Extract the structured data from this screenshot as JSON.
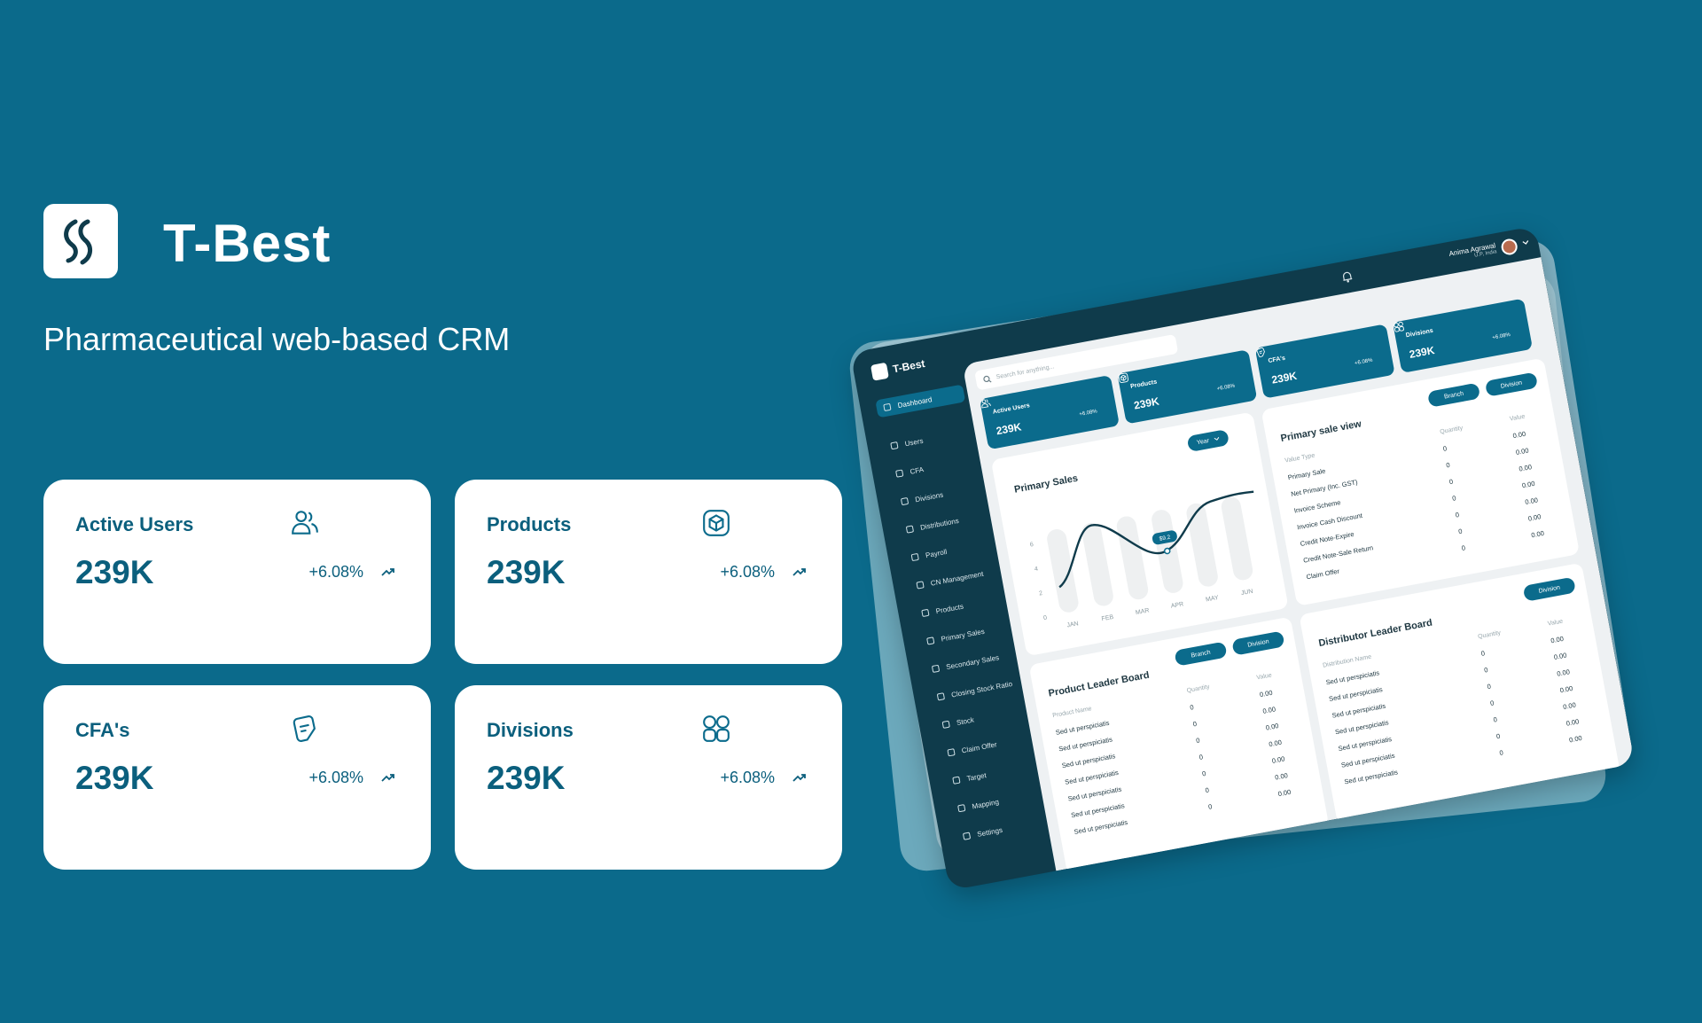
{
  "brand": {
    "name": "T-Best",
    "tagline": "Pharmaceutical web-based CRM"
  },
  "cards": [
    {
      "label": "Active Users",
      "value": "239K",
      "change": "+6.08%"
    },
    {
      "label": "Products",
      "value": "239K",
      "change": "+6.08%"
    },
    {
      "label": "CFA's",
      "value": "239K",
      "change": "+6.08%"
    },
    {
      "label": "Divisions",
      "value": "239K",
      "change": "+6.08%"
    }
  ],
  "dashboard": {
    "brand": "T-Best",
    "search_placeholder": "Search for anything...",
    "user": {
      "name": "Anima Agrawal",
      "location": "U.P, India"
    },
    "sidebar": [
      "Dashboard",
      "Users",
      "CFA",
      "Divisions",
      "Distributions",
      "Payroll",
      "CN Management",
      "Products",
      "Primary Sales",
      "Secondary Sales",
      "Closing Stock Ratio",
      "Stock",
      "Claim Offer",
      "Target",
      "Mapping",
      "Settings"
    ],
    "cards": [
      {
        "label": "Active Users",
        "value": "239K",
        "change": "+6.08%"
      },
      {
        "label": "Products",
        "value": "239K",
        "change": "+6.08%"
      },
      {
        "label": "CFA's",
        "value": "239K",
        "change": "+6.08%"
      },
      {
        "label": "Divisions",
        "value": "239K",
        "change": "+6.08%"
      }
    ],
    "primary_sales": {
      "title": "Primary Sales",
      "filter": "Year",
      "months": [
        "JAN",
        "FEB",
        "MAR",
        "APR",
        "MAY",
        "JUN"
      ],
      "yticks": [
        "0",
        "2",
        "4",
        "6"
      ],
      "tooltip": "$9.2"
    },
    "primary_sale_view": {
      "title": "Primary sale view",
      "filters": [
        "Branch",
        "Division"
      ],
      "columns": [
        "Value Type",
        "Quantity",
        "Value"
      ],
      "rows": [
        [
          "Primary Sale",
          "0",
          "0.00"
        ],
        [
          "Net Primary (Inc. GST)",
          "0",
          "0.00"
        ],
        [
          "Invoice Scheme",
          "0",
          "0.00"
        ],
        [
          "Invoice Cash Discount",
          "0",
          "0.00"
        ],
        [
          "Credit Note-Expire",
          "0",
          "0.00"
        ],
        [
          "Credit Note-Sale Return",
          "0",
          "0.00"
        ],
        [
          "Claim Offer",
          "0",
          "0.00"
        ]
      ]
    },
    "product_leader_board": {
      "title": "Product Leader Board",
      "filters": [
        "Branch",
        "Division"
      ],
      "columns": [
        "Product Name",
        "Quantity",
        "Value"
      ],
      "rows": [
        [
          "Sed ut perspiciatis",
          "0",
          "0.00"
        ],
        [
          "Sed ut perspiciatis",
          "0",
          "0.00"
        ],
        [
          "Sed ut perspiciatis",
          "0",
          "0.00"
        ],
        [
          "Sed ut perspiciatis",
          "0",
          "0.00"
        ],
        [
          "Sed ut perspiciatis",
          "0",
          "0.00"
        ],
        [
          "Sed ut perspiciatis",
          "0",
          "0.00"
        ],
        [
          "Sed ut perspiciatis",
          "0",
          "0.00"
        ]
      ]
    },
    "distributor_leader_board": {
      "title": "Distributor Leader Board",
      "filters": [
        "Division"
      ],
      "columns": [
        "Distribution Name",
        "Quantity",
        "Value"
      ],
      "rows": [
        [
          "Sed ut perspiciatis",
          "0",
          "0.00"
        ],
        [
          "Sed ut perspiciatis",
          "0",
          "0.00"
        ],
        [
          "Sed ut perspiciatis",
          "0",
          "0.00"
        ],
        [
          "Sed ut perspiciatis",
          "0",
          "0.00"
        ],
        [
          "Sed ut perspiciatis",
          "0",
          "0.00"
        ],
        [
          "Sed ut perspiciatis",
          "0",
          "0.00"
        ],
        [
          "Sed ut perspiciatis",
          "0",
          "0.00"
        ]
      ]
    }
  }
}
